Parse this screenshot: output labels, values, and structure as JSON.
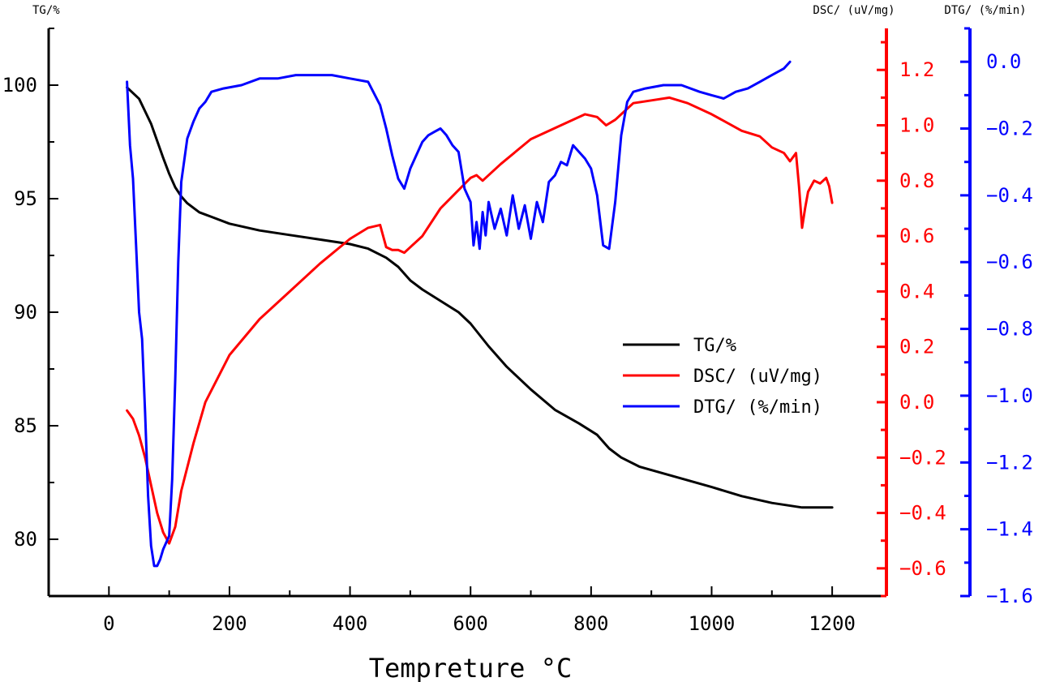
{
  "chart_data": {
    "type": "line",
    "title": "",
    "xlabel": "Tempreture °C",
    "xlim": [
      -100,
      1290
    ],
    "xticks": [
      0,
      200,
      400,
      600,
      800,
      1000,
      1200
    ],
    "axes": {
      "tg": {
        "label": "TG/%",
        "ylim": [
          77.5,
          102.5
        ],
        "ticks": [
          80,
          85,
          90,
          95,
          100
        ],
        "color": "#000000"
      },
      "dsc": {
        "label": "DSC/ (uV/mg)",
        "ylim": [
          -0.7,
          1.35
        ],
        "ticks": [
          -0.6,
          -0.4,
          -0.2,
          0.0,
          0.2,
          0.4,
          0.6,
          0.8,
          1.0,
          1.2
        ],
        "tick_labels": [
          "−0.6",
          "−0.4",
          "−0.2",
          "0.0",
          "0.2",
          "0.4",
          "0.6",
          "0.8",
          "1.0",
          "1.2"
        ],
        "color": "#ff0000"
      },
      "dtg": {
        "label": "DTG/ (%/min)",
        "ylim": [
          -1.6,
          0.1
        ],
        "ticks": [
          -1.6,
          -1.4,
          -1.2,
          -1.0,
          -0.8,
          -0.6,
          -0.4,
          -0.2,
          0.0
        ],
        "tick_labels": [
          "−1.6",
          "−1.4",
          "−1.2",
          "−1.0",
          "−0.8",
          "−0.6",
          "−0.4",
          "−0.2",
          "0.0"
        ],
        "color": "#0000ff"
      }
    },
    "legend_position": "center-right",
    "series": [
      {
        "name": "TG/%",
        "axis": "tg",
        "color": "#000000",
        "x": [
          30,
          50,
          70,
          90,
          100,
          110,
          120,
          130,
          150,
          170,
          200,
          250,
          300,
          350,
          400,
          430,
          460,
          480,
          500,
          520,
          550,
          580,
          600,
          630,
          660,
          700,
          740,
          780,
          810,
          830,
          850,
          880,
          920,
          960,
          1000,
          1050,
          1100,
          1150,
          1180,
          1200
        ],
        "y": [
          99.9,
          99.4,
          98.3,
          96.8,
          96.1,
          95.5,
          95.1,
          94.8,
          94.4,
          94.2,
          93.9,
          93.6,
          93.4,
          93.2,
          93.0,
          92.8,
          92.4,
          92.0,
          91.4,
          91.0,
          90.5,
          90.0,
          89.5,
          88.5,
          87.6,
          86.6,
          85.7,
          85.1,
          84.6,
          84.0,
          83.6,
          83.2,
          82.9,
          82.6,
          82.3,
          81.9,
          81.6,
          81.4,
          81.4,
          81.4
        ]
      },
      {
        "name": "DSC/ (uV/mg)",
        "axis": "dsc",
        "color": "#ff0000",
        "x": [
          30,
          40,
          50,
          60,
          70,
          80,
          90,
          100,
          110,
          120,
          140,
          160,
          200,
          250,
          300,
          350,
          400,
          430,
          450,
          460,
          470,
          480,
          490,
          500,
          520,
          550,
          600,
          610,
          620,
          650,
          700,
          750,
          790,
          810,
          825,
          840,
          870,
          900,
          930,
          960,
          1000,
          1050,
          1080,
          1100,
          1120,
          1130,
          1140,
          1145,
          1150,
          1155,
          1160,
          1170,
          1180,
          1190,
          1195,
          1200
        ],
        "y": [
          -0.03,
          -0.06,
          -0.12,
          -0.2,
          -0.3,
          -0.4,
          -0.47,
          -0.51,
          -0.45,
          -0.32,
          -0.15,
          0.0,
          0.17,
          0.3,
          0.4,
          0.5,
          0.59,
          0.63,
          0.64,
          0.56,
          0.55,
          0.55,
          0.54,
          0.56,
          0.6,
          0.7,
          0.81,
          0.82,
          0.8,
          0.86,
          0.95,
          1.0,
          1.04,
          1.03,
          1.0,
          1.02,
          1.08,
          1.09,
          1.1,
          1.08,
          1.04,
          0.98,
          0.96,
          0.92,
          0.9,
          0.87,
          0.9,
          0.78,
          0.63,
          0.7,
          0.76,
          0.8,
          0.79,
          0.81,
          0.78,
          0.72
        ]
      },
      {
        "name": "DTG/ (%/min)",
        "axis": "dtg",
        "color": "#0000ff",
        "x": [
          30,
          35,
          40,
          45,
          50,
          55,
          60,
          65,
          70,
          75,
          80,
          85,
          90,
          95,
          100,
          105,
          110,
          115,
          120,
          130,
          140,
          150,
          160,
          170,
          190,
          220,
          250,
          280,
          310,
          340,
          370,
          400,
          430,
          450,
          460,
          470,
          480,
          490,
          500,
          510,
          520,
          530,
          540,
          550,
          560,
          570,
          580,
          590,
          600,
          605,
          610,
          615,
          620,
          625,
          630,
          640,
          650,
          660,
          670,
          680,
          690,
          700,
          710,
          720,
          730,
          740,
          750,
          760,
          770,
          780,
          790,
          800,
          810,
          820,
          830,
          840,
          850,
          860,
          870,
          890,
          920,
          950,
          980,
          1000,
          1020,
          1040,
          1060,
          1080,
          1100,
          1120,
          1130
        ],
        "y": [
          -0.06,
          -0.25,
          -0.35,
          -0.55,
          -0.75,
          -0.83,
          -1.05,
          -1.3,
          -1.45,
          -1.51,
          -1.51,
          -1.49,
          -1.46,
          -1.44,
          -1.42,
          -1.25,
          -0.95,
          -0.6,
          -0.36,
          -0.23,
          -0.18,
          -0.14,
          -0.12,
          -0.09,
          -0.08,
          -0.07,
          -0.05,
          -0.05,
          -0.04,
          -0.04,
          -0.04,
          -0.05,
          -0.06,
          -0.13,
          -0.2,
          -0.28,
          -0.35,
          -0.38,
          -0.32,
          -0.28,
          -0.24,
          -0.22,
          -0.21,
          -0.2,
          -0.22,
          -0.25,
          -0.27,
          -0.38,
          -0.42,
          -0.55,
          -0.48,
          -0.56,
          -0.45,
          -0.52,
          -0.42,
          -0.5,
          -0.44,
          -0.52,
          -0.4,
          -0.5,
          -0.43,
          -0.53,
          -0.42,
          -0.48,
          -0.36,
          -0.34,
          -0.3,
          -0.31,
          -0.25,
          -0.27,
          -0.29,
          -0.32,
          -0.4,
          -0.55,
          -0.56,
          -0.42,
          -0.22,
          -0.12,
          -0.09,
          -0.08,
          -0.07,
          -0.07,
          -0.09,
          -0.1,
          -0.11,
          -0.09,
          -0.08,
          -0.06,
          -0.04,
          -0.02,
          0.0
        ]
      }
    ]
  }
}
